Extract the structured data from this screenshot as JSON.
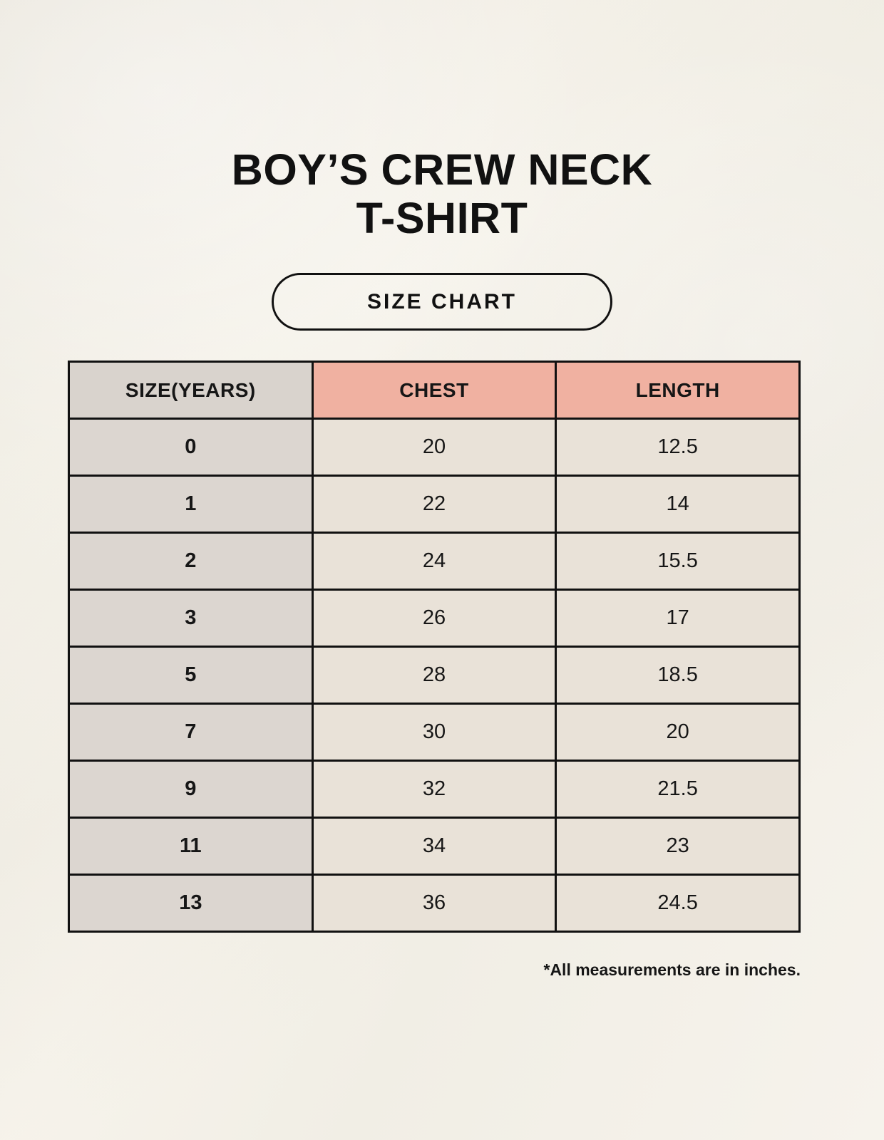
{
  "page": {
    "title_line1": "BOY’S CREW NECK",
    "title_line2": "T-SHIRT",
    "badge_label": "SIZE CHART",
    "footnote": "*All measurements are in inches."
  },
  "colors": {
    "page_background": "#f3f0e8",
    "header_size_bg": "#d9d3cd",
    "header_accent_bg": "#f0b1a1",
    "size_column_bg": "#dcd6d0",
    "value_cell_bg": "#e9e2d8",
    "border": "#111111",
    "text": "#161616"
  },
  "chart_data": {
    "type": "table",
    "title": "BOY’S CREW NECK T-SHIRT — SIZE CHART",
    "units": "inches",
    "columns": [
      "SIZE(YEARS)",
      "CHEST",
      "LENGTH"
    ],
    "rows": [
      [
        "0",
        "20",
        "12.5"
      ],
      [
        "1",
        "22",
        "14"
      ],
      [
        "2",
        "24",
        "15.5"
      ],
      [
        "3",
        "26",
        "17"
      ],
      [
        "5",
        "28",
        "18.5"
      ],
      [
        "7",
        "30",
        "20"
      ],
      [
        "9",
        "32",
        "21.5"
      ],
      [
        "11",
        "34",
        "23"
      ],
      [
        "13",
        "36",
        "24.5"
      ]
    ]
  }
}
